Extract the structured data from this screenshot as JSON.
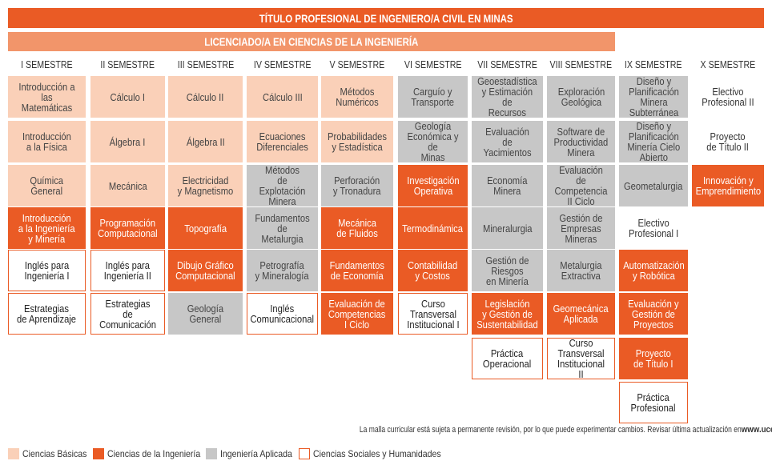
{
  "title": "TÍTULO PROFESIONAL DE INGENIERO/A CIVIL EN MINAS",
  "subtitle": "LICENCIADO/A EN CIENCIAS DE LA INGENIERÍA",
  "colors": {
    "basicas": "#fad0b8",
    "ingenieria": "#ea5b25",
    "aplicada": "#c7c7c7",
    "sociales_border": "#ea5b25"
  },
  "semesters": [
    {
      "name": "I SEMESTRE",
      "courses": [
        {
          "label": "Introducción a\nlas Matemáticas",
          "category": "basicas"
        },
        {
          "label": "Introducción\na la Física",
          "category": "basicas"
        },
        {
          "label": "Química\nGeneral",
          "category": "basicas"
        },
        {
          "label": "Introducción\na la Ingeniería\ny Minería",
          "category": "ingenieria"
        },
        {
          "label": "Inglés para\nIngeniería I",
          "category": "sociales"
        },
        {
          "label": "Estrategias\nde Aprendizaje",
          "category": "sociales"
        }
      ]
    },
    {
      "name": "II SEMESTRE",
      "courses": [
        {
          "label": "Cálculo I",
          "category": "basicas"
        },
        {
          "label": "Álgebra I",
          "category": "basicas"
        },
        {
          "label": "Mecánica",
          "category": "basicas"
        },
        {
          "label": "Programación\nComputacional",
          "category": "ingenieria"
        },
        {
          "label": "Inglés para\nIngeniería II",
          "category": "sociales"
        },
        {
          "label": "Estrategias\nde Comunicación",
          "category": "sociales"
        }
      ]
    },
    {
      "name": "III SEMESTRE",
      "courses": [
        {
          "label": "Cálculo II",
          "category": "basicas"
        },
        {
          "label": "Álgebra II",
          "category": "basicas"
        },
        {
          "label": "Electricidad\ny Magnetismo",
          "category": "basicas"
        },
        {
          "label": "Topografía",
          "category": "ingenieria"
        },
        {
          "label": "Dibujo Gráfico\nComputacional",
          "category": "ingenieria"
        },
        {
          "label": "Geología\nGeneral",
          "category": "aplicada"
        }
      ]
    },
    {
      "name": "IV SEMESTRE",
      "courses": [
        {
          "label": "Cálculo III",
          "category": "basicas"
        },
        {
          "label": "Ecuaciones\nDiferenciales",
          "category": "basicas"
        },
        {
          "label": "Métodos\nde Explotación\nMinera",
          "category": "aplicada"
        },
        {
          "label": "Fundamentos de\nMetalurgia",
          "category": "aplicada"
        },
        {
          "label": "Petrografía\ny Mineralogía",
          "category": "aplicada"
        },
        {
          "label": "Inglés\nComunicacional",
          "category": "sociales"
        }
      ]
    },
    {
      "name": "V SEMESTRE",
      "courses": [
        {
          "label": "Métodos Numéricos",
          "category": "basicas"
        },
        {
          "label": "Probabilidades\ny Estadística",
          "category": "basicas"
        },
        {
          "label": "Perforación\ny Tronadura",
          "category": "aplicada"
        },
        {
          "label": "Mecánica\nde Fluidos",
          "category": "ingenieria"
        },
        {
          "label": "Fundamentos\nde Economía",
          "category": "ingenieria"
        },
        {
          "label": "Evaluación de\nCompetencias\nI Ciclo",
          "category": "ingenieria"
        }
      ]
    },
    {
      "name": "VI SEMESTRE",
      "courses": [
        {
          "label": "Carguío y\nTransporte",
          "category": "aplicada"
        },
        {
          "label": "Geología\nEconómica y de\nMinas",
          "category": "aplicada"
        },
        {
          "label": "Investigación\nOperativa",
          "category": "ingenieria"
        },
        {
          "label": "Termodinámica",
          "category": "ingenieria"
        },
        {
          "label": "Contabilidad\ny Costos",
          "category": "ingenieria"
        },
        {
          "label": "Curso\nTransversal\nInstitucional I",
          "category": "sociales"
        }
      ]
    },
    {
      "name": "VII SEMESTRE",
      "courses": [
        {
          "label": "Geoestadística\ny Estimación de\nRecursos",
          "category": "aplicada"
        },
        {
          "label": "Evaluación\nde Yacimientos",
          "category": "aplicada"
        },
        {
          "label": "Economía\nMinera",
          "category": "aplicada"
        },
        {
          "label": "Mineralurgia",
          "category": "aplicada"
        },
        {
          "label": "Gestión de\nRiesgos\nen Minería",
          "category": "aplicada"
        },
        {
          "label": "Legislación\ny Gestión de\nSustentabilidad",
          "category": "ingenieria"
        },
        {
          "label": "Práctica\nOperacional",
          "category": "sociales"
        }
      ]
    },
    {
      "name": "VIII SEMESTRE",
      "courses": [
        {
          "label": "Exploración\nGeológica",
          "category": "aplicada"
        },
        {
          "label": "Software de\nProductividad\nMinera",
          "category": "aplicada"
        },
        {
          "label": "Evaluación de\nCompetencia\nII Ciclo",
          "category": "aplicada"
        },
        {
          "label": "Gestión de\nEmpresas\nMineras",
          "category": "aplicada"
        },
        {
          "label": "Metalurgia\nExtractiva",
          "category": "aplicada"
        },
        {
          "label": "Geomecánica\nAplicada",
          "category": "ingenieria"
        },
        {
          "label": "Curso Transversal\nInstitucional II",
          "category": "sociales"
        }
      ]
    },
    {
      "name": "IX SEMESTRE",
      "courses": [
        {
          "label": "Diseño y\nPlanificación\nMinera\nSubterránea",
          "category": "aplicada"
        },
        {
          "label": "Diseño y\nPlanificación\nMinería Cielo\nAbierto",
          "category": "aplicada"
        },
        {
          "label": "Geometalurgia",
          "category": "aplicada"
        },
        {
          "label": "Electivo\nProfesional I",
          "category": "sociales_plain"
        },
        {
          "label": "Automatización\ny Robótica",
          "category": "ingenieria"
        },
        {
          "label": "Evaluación y\nGestión de\nProyectos",
          "category": "ingenieria"
        },
        {
          "label": "Proyecto\nde Título I",
          "category": "ingenieria"
        },
        {
          "label": "Práctica\nProfesional",
          "category": "sociales"
        }
      ]
    },
    {
      "name": "X SEMESTRE",
      "courses": [
        {
          "label": "Electivo\nProfesional II",
          "category": "plain"
        },
        {
          "label": "Proyecto\nde Título II",
          "category": "plain"
        },
        {
          "label": "Innovación y\nEmprendimiento",
          "category": "ingenieria"
        }
      ]
    }
  ],
  "note_text": "La malla curricular está sujeta a permanente revisión, por lo que puede experimentar cambios. Revisar última actualización en ",
  "note_link": "www.ucentral.cl",
  "legend": [
    {
      "label": "Ciencias Básicas",
      "category": "basicas"
    },
    {
      "label": "Ciencias de la Ingeniería",
      "category": "ingenieria"
    },
    {
      "label": "Ingeniería Aplicada",
      "category": "aplicada"
    },
    {
      "label": "Ciencias Sociales y Humanidades",
      "category": "sociales"
    }
  ]
}
